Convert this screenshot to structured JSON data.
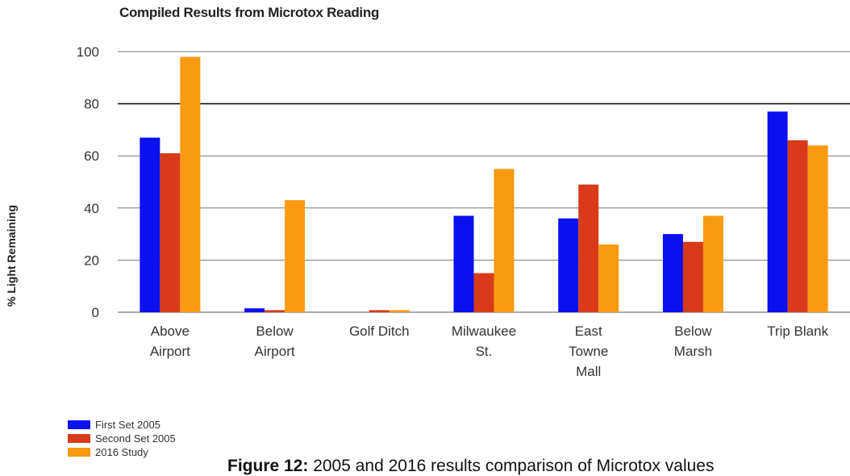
{
  "chart_data": {
    "type": "bar",
    "title": "Compiled Results from Microtox Reading",
    "xlabel": "",
    "ylabel": "% Light Remaining",
    "ylim": [
      0,
      100
    ],
    "yticks": [
      0,
      20,
      40,
      60,
      80,
      100
    ],
    "grid": true,
    "legend_position": "bottom-left",
    "categories": [
      [
        "Above",
        "Airport"
      ],
      [
        "Below",
        "Airport"
      ],
      [
        "Golf Ditch"
      ],
      [
        "Milwaukee",
        "St."
      ],
      [
        "East",
        "Towne",
        "Mall"
      ],
      [
        "Below",
        "Marsh"
      ],
      [
        "Trip Blank"
      ]
    ],
    "series": [
      {
        "name": "First Set 2005",
        "color": "#0a10ee",
        "values": [
          67,
          1.5,
          0,
          37,
          36,
          30,
          77
        ]
      },
      {
        "name": "Second Set 2005",
        "color": "#d83a1a",
        "values": [
          61,
          0.8,
          0.8,
          15,
          49,
          27,
          66
        ]
      },
      {
        "name": "2016 Study",
        "color": "#f99a12",
        "values": [
          98,
          43,
          0.8,
          55,
          26,
          37,
          64
        ]
      }
    ]
  },
  "caption": {
    "prefix": "Figure 12:",
    "text": " 2005 and 2016 results comparison of Microtox values"
  }
}
